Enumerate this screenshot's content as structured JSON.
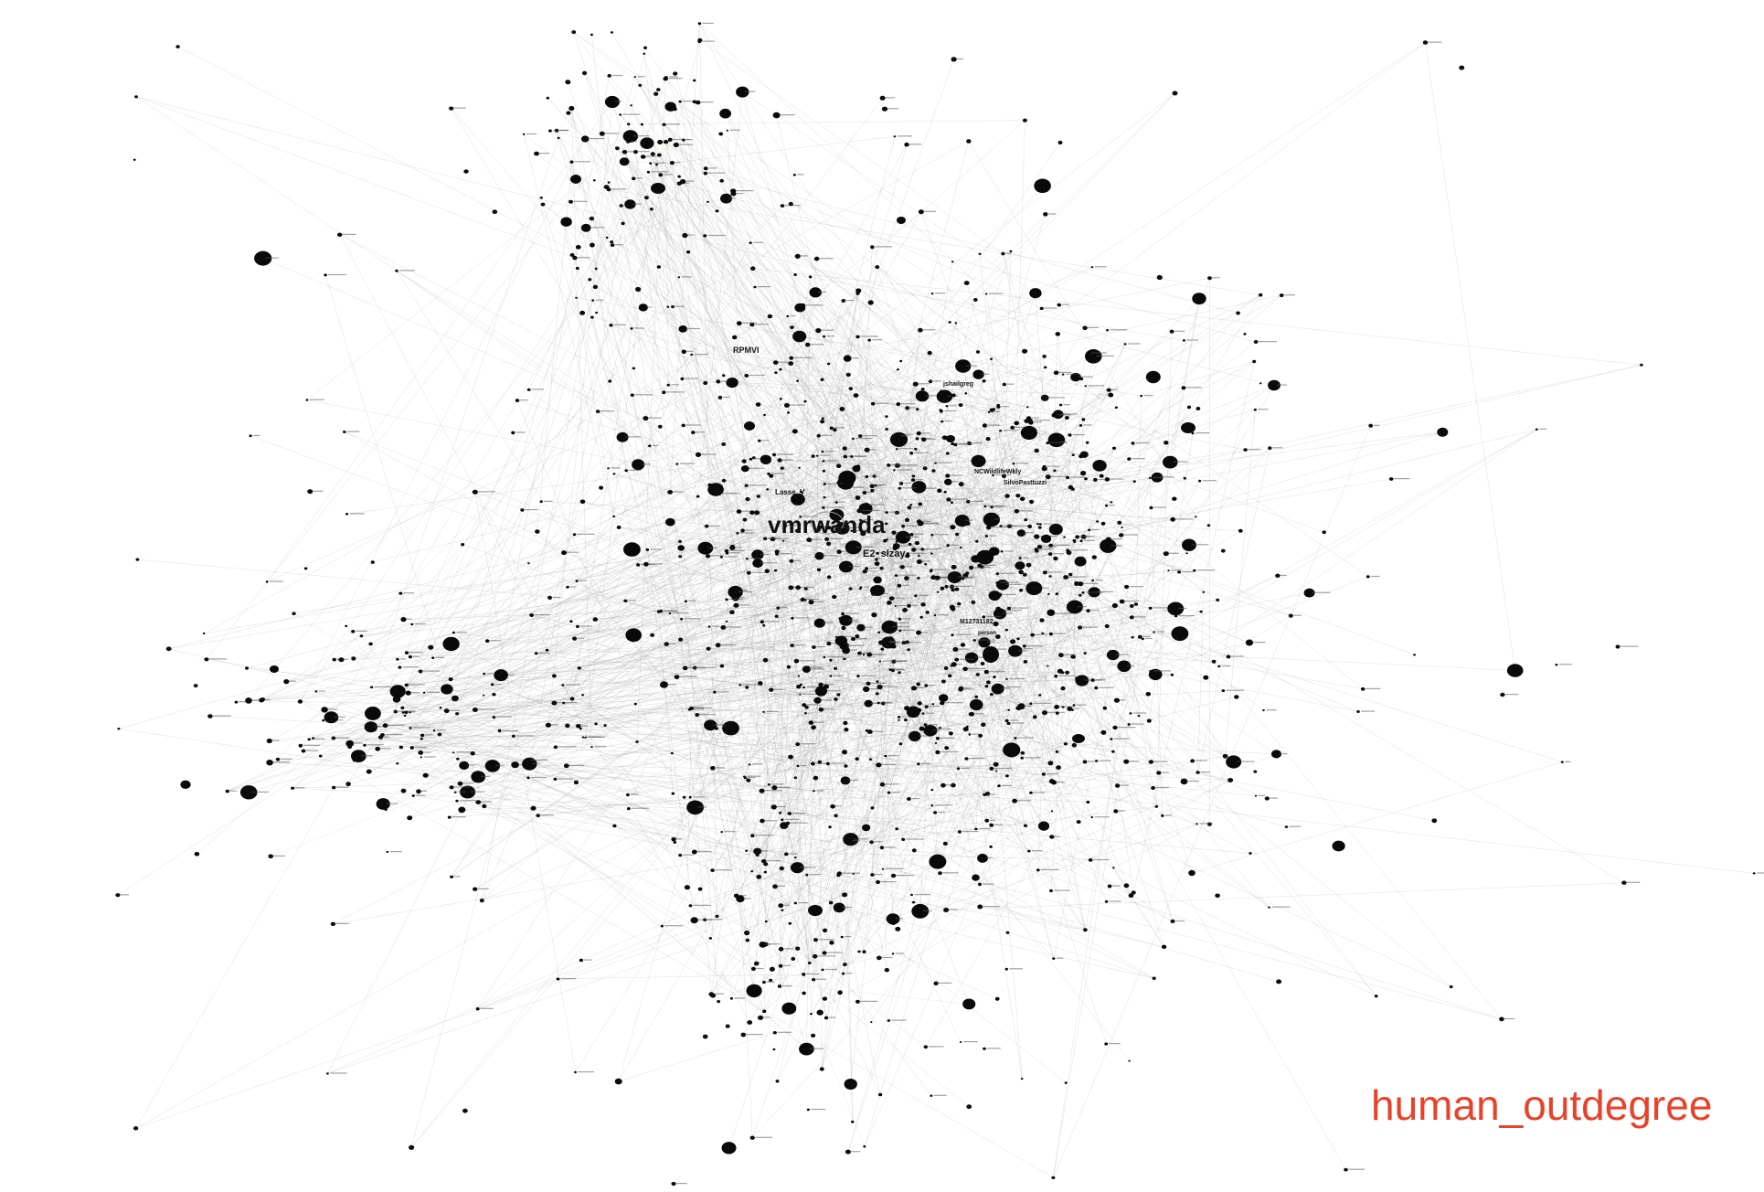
{
  "caption": "human_outdegree",
  "colors": {
    "caption": "#e8432a",
    "node": "#0a0a0a",
    "edge": "#9a9a9a",
    "label": "#111111",
    "edge_tints": [
      "#9bc46a",
      "#d9a3b0",
      "#8fc3cf",
      "#b18ad1"
    ]
  },
  "labels": {
    "vmrwanda": "vmrwanda",
    "e2_slzay": "E2_slzay",
    "rpmvi": "RPMVI",
    "lasse_v": "Lasse_V",
    "jshailgreg": "jshailgreg",
    "ncwildlife": "NCWildlifeWkly",
    "silvo": "SilvoPasttuzzi",
    "num_id": "M12731182",
    "person": "person"
  }
}
